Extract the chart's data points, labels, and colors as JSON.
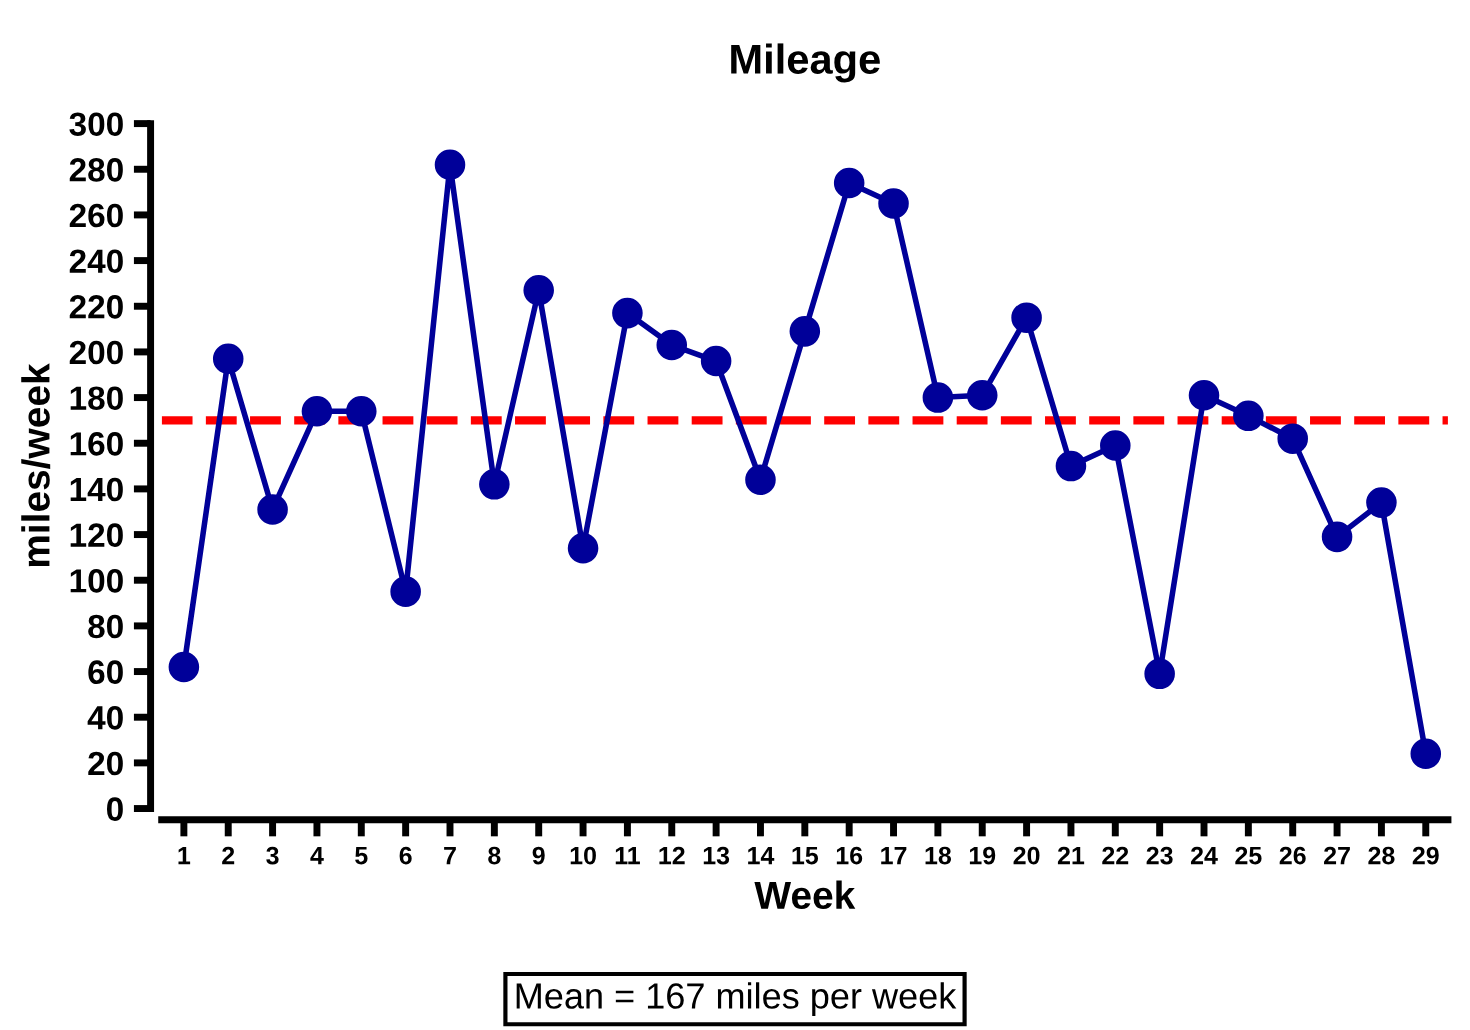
{
  "chart_data": {
    "type": "line",
    "title": "Mileage",
    "xlabel": "Week",
    "ylabel": "miles/week",
    "categories": [
      "1",
      "2",
      "3",
      "4",
      "5",
      "6",
      "7",
      "8",
      "9",
      "10",
      "11",
      "12",
      "13",
      "14",
      "15",
      "16",
      "17",
      "18",
      "19",
      "20",
      "21",
      "22",
      "23",
      "24",
      "25",
      "26",
      "27",
      "28",
      "29"
    ],
    "series": [
      {
        "color": "#000099",
        "values": [
          62,
          197,
          131,
          174,
          174,
          95,
          282,
          142,
          227,
          114,
          217,
          203,
          196,
          144,
          209,
          274,
          265,
          180,
          181,
          215,
          150,
          159,
          59,
          181,
          172,
          162,
          119,
          134,
          24
        ]
      }
    ],
    "ylim": [
      0,
      300
    ],
    "yticks": [
      0,
      20,
      40,
      60,
      80,
      100,
      120,
      140,
      160,
      180,
      200,
      220,
      240,
      260,
      280,
      300
    ],
    "marker": "circle",
    "line_style": "solid",
    "grid": false,
    "legend": false,
    "ref_lines": [
      {
        "axis": "y",
        "value": 170,
        "color": "#ff0000",
        "line_style": "dashed"
      }
    ],
    "annotations": [
      "Mean = 167 miles per week"
    ]
  }
}
